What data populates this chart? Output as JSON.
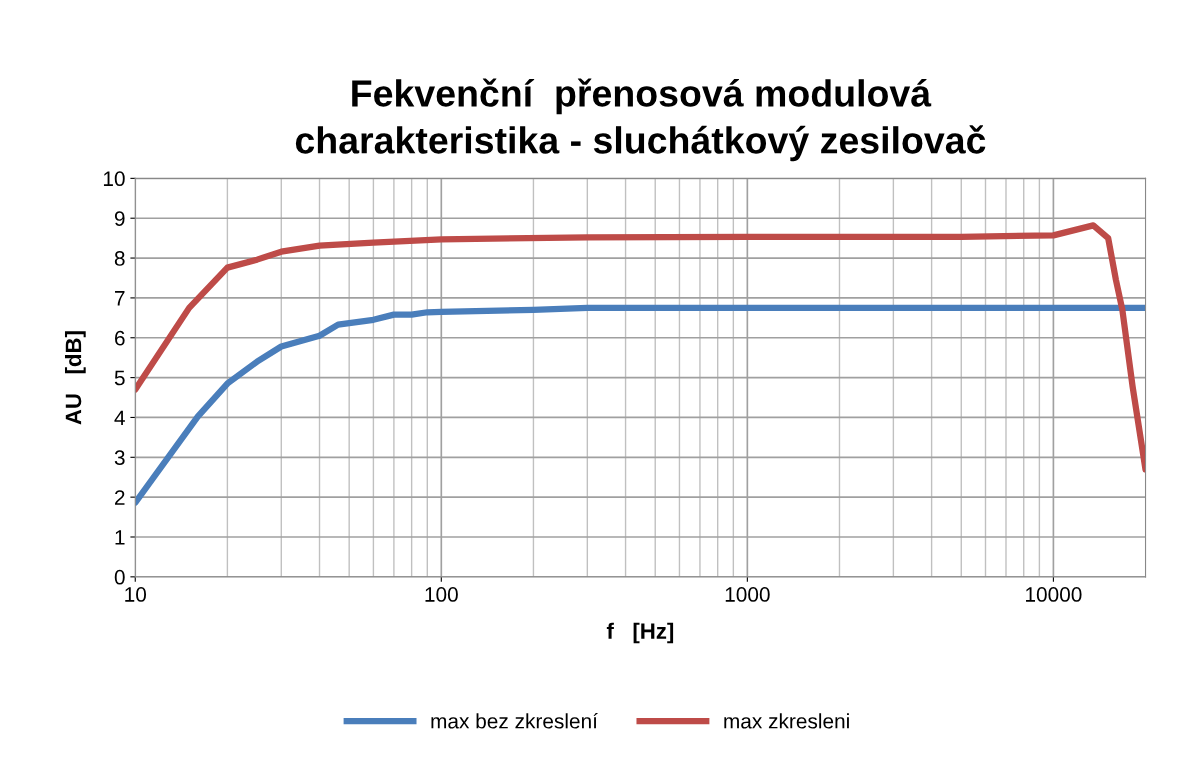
{
  "chart_data": {
    "type": "line",
    "title": "Fekvenční  přenosová modulová\ncharakteristika - sluchátkový zesilovač",
    "xlabel": "f   [Hz]",
    "ylabel": "AU   [dB]",
    "log": "x",
    "xlim": [
      10,
      20000
    ],
    "xticks": [
      10,
      100,
      1000,
      10000
    ],
    "ylim": [
      0,
      10
    ],
    "yticks": [
      0,
      1,
      2,
      3,
      4,
      5,
      6,
      7,
      8,
      9,
      10
    ],
    "grid": true,
    "legend": "bottom",
    "marker": "none",
    "line_style": "solid",
    "series": [
      {
        "name": "max bez zkreslení",
        "color": "#4a7ebb",
        "x": [
          10,
          16,
          20,
          25,
          30,
          40,
          46,
          60,
          70,
          80,
          90,
          100,
          200,
          300,
          1000,
          10000,
          20000
        ],
        "values": [
          1.86,
          4.02,
          4.85,
          5.4,
          5.78,
          6.05,
          6.33,
          6.45,
          6.58,
          6.58,
          6.64,
          6.65,
          6.7,
          6.75,
          6.75,
          6.75,
          6.75
        ]
      },
      {
        "name": "max zkresleni",
        "color": "#be4b48",
        "x": [
          10,
          15,
          20,
          25,
          30,
          40,
          60,
          100,
          300,
          1000,
          5000,
          10000,
          13500,
          15100,
          16000,
          16800,
          18150,
          20000
        ],
        "values": [
          4.7,
          6.75,
          7.76,
          7.96,
          8.16,
          8.31,
          8.39,
          8.47,
          8.52,
          8.53,
          8.53,
          8.57,
          8.82,
          8.5,
          7.46,
          6.7,
          4.77,
          2.69
        ]
      }
    ]
  }
}
